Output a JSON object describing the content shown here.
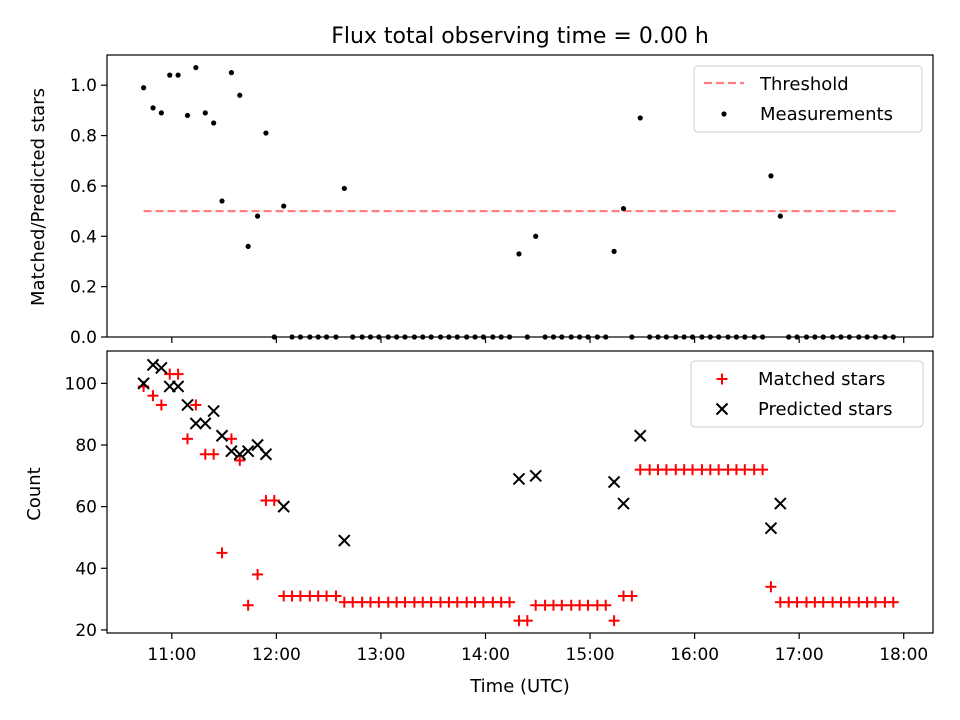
{
  "chart_data": [
    {
      "type": "scatter",
      "title": "Flux total observing time = 0.00 h",
      "xlabel": "",
      "ylabel": "Matched/Predicted stars",
      "xlim": [
        10.38,
        18.28
      ],
      "ylim": [
        0.0,
        1.12
      ],
      "yticks": [
        0.0,
        0.2,
        0.4,
        0.6,
        0.8,
        1.0
      ],
      "yticklabels": [
        "0.0",
        "0.2",
        "0.4",
        "0.6",
        "0.8",
        "1.0"
      ],
      "xticks": [
        11,
        12,
        13,
        14,
        15,
        16,
        17,
        18
      ],
      "legend": {
        "placement": "top-right",
        "entries": [
          "Threshold",
          "Measurements"
        ]
      },
      "threshold": {
        "name": "Threshold",
        "y": 0.5,
        "x_start": 10.73,
        "x_end": 17.93,
        "color": "#ff7f7f"
      },
      "series": [
        {
          "name": "Measurements",
          "color": "#000000",
          "points": [
            [
              10.73,
              0.99
            ],
            [
              10.82,
              0.91
            ],
            [
              10.9,
              0.89
            ],
            [
              10.98,
              1.04
            ],
            [
              11.06,
              1.04
            ],
            [
              11.15,
              0.88
            ],
            [
              11.23,
              1.07
            ],
            [
              11.32,
              0.89
            ],
            [
              11.4,
              0.85
            ],
            [
              11.48,
              0.54
            ],
            [
              11.57,
              1.05
            ],
            [
              11.65,
              0.96
            ],
            [
              11.73,
              0.36
            ],
            [
              11.82,
              0.48
            ],
            [
              11.9,
              0.81
            ],
            [
              11.98,
              0.0
            ],
            [
              12.07,
              0.52
            ],
            [
              12.15,
              0.0
            ],
            [
              12.23,
              0.0
            ],
            [
              12.32,
              0.0
            ],
            [
              12.4,
              0.0
            ],
            [
              12.48,
              0.0
            ],
            [
              12.57,
              0.0
            ],
            [
              12.65,
              0.59
            ],
            [
              12.73,
              0.0
            ],
            [
              12.82,
              0.0
            ],
            [
              12.9,
              0.0
            ],
            [
              12.98,
              0.0
            ],
            [
              13.07,
              0.0
            ],
            [
              13.15,
              0.0
            ],
            [
              13.23,
              0.0
            ],
            [
              13.32,
              0.0
            ],
            [
              13.4,
              0.0
            ],
            [
              13.48,
              0.0
            ],
            [
              13.57,
              0.0
            ],
            [
              13.65,
              0.0
            ],
            [
              13.73,
              0.0
            ],
            [
              13.82,
              0.0
            ],
            [
              13.9,
              0.0
            ],
            [
              13.98,
              0.0
            ],
            [
              14.07,
              0.0
            ],
            [
              14.15,
              0.0
            ],
            [
              14.23,
              0.0
            ],
            [
              14.32,
              0.33
            ],
            [
              14.4,
              0.0
            ],
            [
              14.48,
              0.4
            ],
            [
              14.57,
              0.0
            ],
            [
              14.65,
              0.0
            ],
            [
              14.73,
              0.0
            ],
            [
              14.82,
              0.0
            ],
            [
              14.9,
              0.0
            ],
            [
              14.98,
              0.0
            ],
            [
              15.07,
              0.0
            ],
            [
              15.15,
              0.0
            ],
            [
              15.23,
              0.34
            ],
            [
              15.32,
              0.51
            ],
            [
              15.4,
              0.0
            ],
            [
              15.48,
              0.87
            ],
            [
              15.57,
              0.0
            ],
            [
              15.65,
              0.0
            ],
            [
              15.73,
              0.0
            ],
            [
              15.82,
              0.0
            ],
            [
              15.9,
              0.0
            ],
            [
              15.98,
              0.0
            ],
            [
              16.07,
              0.0
            ],
            [
              16.15,
              0.0
            ],
            [
              16.23,
              0.0
            ],
            [
              16.32,
              0.0
            ],
            [
              16.4,
              0.0
            ],
            [
              16.48,
              0.0
            ],
            [
              16.57,
              0.0
            ],
            [
              16.65,
              0.0
            ],
            [
              16.73,
              0.64
            ],
            [
              16.82,
              0.48
            ],
            [
              16.9,
              0.0
            ],
            [
              16.98,
              0.0
            ],
            [
              17.07,
              0.0
            ],
            [
              17.15,
              0.0
            ],
            [
              17.23,
              0.0
            ],
            [
              17.32,
              0.0
            ],
            [
              17.4,
              0.0
            ],
            [
              17.48,
              0.0
            ],
            [
              17.57,
              0.0
            ],
            [
              17.65,
              0.0
            ],
            [
              17.73,
              0.0
            ],
            [
              17.82,
              0.0
            ],
            [
              17.9,
              0.0
            ]
          ]
        }
      ]
    },
    {
      "type": "scatter",
      "title": "",
      "xlabel": "Time (UTC)",
      "ylabel": "Count",
      "xlim": [
        10.38,
        18.28
      ],
      "ylim": [
        19.0,
        110.5
      ],
      "yticks": [
        20,
        40,
        60,
        80,
        100
      ],
      "yticklabels": [
        "20",
        "40",
        "60",
        "80",
        "100"
      ],
      "xticks": [
        11,
        12,
        13,
        14,
        15,
        16,
        17,
        18
      ],
      "xticklabels": [
        "11:00",
        "12:00",
        "13:00",
        "14:00",
        "15:00",
        "16:00",
        "17:00",
        "18:00"
      ],
      "legend": {
        "placement": "top-right",
        "entries": [
          "Matched stars",
          "Predicted stars"
        ]
      },
      "series": [
        {
          "name": "Matched stars",
          "marker": "plus",
          "color": "#ff0000",
          "points": [
            [
              10.73,
              99
            ],
            [
              10.82,
              96
            ],
            [
              10.9,
              93
            ],
            [
              10.98,
              103
            ],
            [
              11.06,
              103
            ],
            [
              11.15,
              82
            ],
            [
              11.23,
              93
            ],
            [
              11.32,
              77
            ],
            [
              11.4,
              77
            ],
            [
              11.48,
              45
            ],
            [
              11.57,
              82
            ],
            [
              11.65,
              75
            ],
            [
              11.73,
              28
            ],
            [
              11.82,
              38
            ],
            [
              11.9,
              62
            ],
            [
              11.98,
              62
            ],
            [
              12.07,
              31
            ],
            [
              12.15,
              31
            ],
            [
              12.23,
              31
            ],
            [
              12.32,
              31
            ],
            [
              12.4,
              31
            ],
            [
              12.48,
              31
            ],
            [
              12.57,
              31
            ],
            [
              12.65,
              29
            ],
            [
              12.73,
              29
            ],
            [
              12.82,
              29
            ],
            [
              12.9,
              29
            ],
            [
              12.98,
              29
            ],
            [
              13.07,
              29
            ],
            [
              13.15,
              29
            ],
            [
              13.23,
              29
            ],
            [
              13.32,
              29
            ],
            [
              13.4,
              29
            ],
            [
              13.48,
              29
            ],
            [
              13.57,
              29
            ],
            [
              13.65,
              29
            ],
            [
              13.73,
              29
            ],
            [
              13.82,
              29
            ],
            [
              13.9,
              29
            ],
            [
              13.98,
              29
            ],
            [
              14.07,
              29
            ],
            [
              14.15,
              29
            ],
            [
              14.23,
              29
            ],
            [
              14.32,
              23
            ],
            [
              14.4,
              23
            ],
            [
              14.48,
              28
            ],
            [
              14.57,
              28
            ],
            [
              14.65,
              28
            ],
            [
              14.73,
              28
            ],
            [
              14.82,
              28
            ],
            [
              14.9,
              28
            ],
            [
              14.98,
              28
            ],
            [
              15.07,
              28
            ],
            [
              15.15,
              28
            ],
            [
              15.23,
              23
            ],
            [
              15.32,
              31
            ],
            [
              15.4,
              31
            ],
            [
              15.48,
              72
            ],
            [
              15.57,
              72
            ],
            [
              15.65,
              72
            ],
            [
              15.73,
              72
            ],
            [
              15.82,
              72
            ],
            [
              15.9,
              72
            ],
            [
              15.98,
              72
            ],
            [
              16.07,
              72
            ],
            [
              16.15,
              72
            ],
            [
              16.23,
              72
            ],
            [
              16.32,
              72
            ],
            [
              16.4,
              72
            ],
            [
              16.48,
              72
            ],
            [
              16.57,
              72
            ],
            [
              16.65,
              72
            ],
            [
              16.73,
              34
            ],
            [
              16.82,
              29
            ],
            [
              16.9,
              29
            ],
            [
              16.98,
              29
            ],
            [
              17.07,
              29
            ],
            [
              17.15,
              29
            ],
            [
              17.23,
              29
            ],
            [
              17.32,
              29
            ],
            [
              17.4,
              29
            ],
            [
              17.48,
              29
            ],
            [
              17.57,
              29
            ],
            [
              17.65,
              29
            ],
            [
              17.73,
              29
            ],
            [
              17.82,
              29
            ],
            [
              17.9,
              29
            ]
          ]
        },
        {
          "name": "Predicted stars",
          "marker": "x",
          "color": "#000000",
          "points": [
            [
              10.73,
              100
            ],
            [
              10.82,
              106
            ],
            [
              10.9,
              105
            ],
            [
              10.98,
              99
            ],
            [
              11.06,
              99
            ],
            [
              11.15,
              93
            ],
            [
              11.23,
              87
            ],
            [
              11.32,
              87
            ],
            [
              11.4,
              91
            ],
            [
              11.48,
              83
            ],
            [
              11.57,
              78
            ],
            [
              11.65,
              77
            ],
            [
              11.73,
              78
            ],
            [
              11.82,
              80
            ],
            [
              11.9,
              77
            ],
            [
              12.07,
              60
            ],
            [
              12.65,
              49
            ],
            [
              14.32,
              69
            ],
            [
              14.48,
              70
            ],
            [
              15.23,
              68
            ],
            [
              15.32,
              61
            ],
            [
              15.48,
              83
            ],
            [
              16.73,
              53
            ],
            [
              16.82,
              61
            ]
          ]
        }
      ]
    }
  ]
}
